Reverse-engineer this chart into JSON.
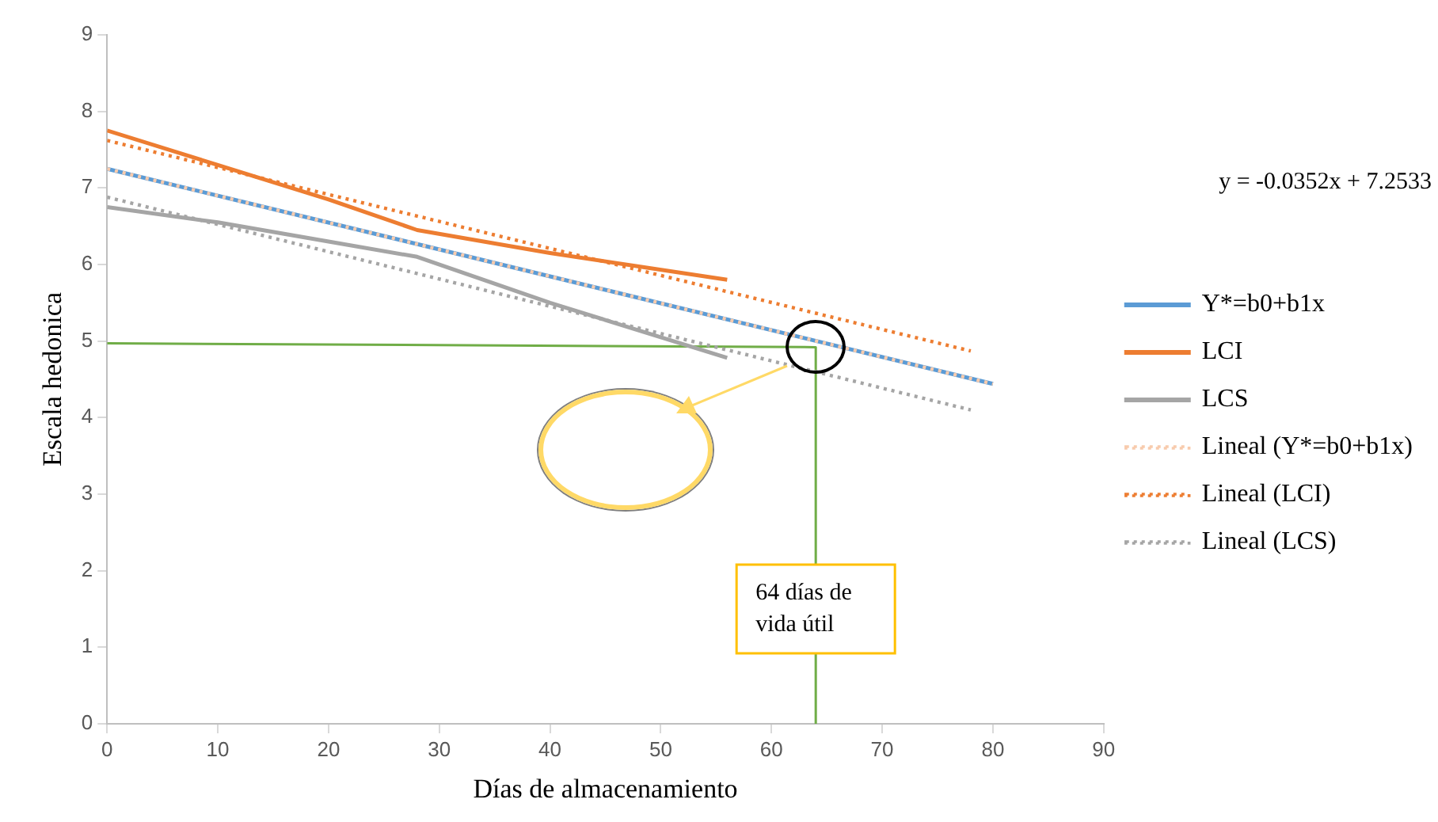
{
  "chart_data": {
    "type": "line",
    "xlabel": "Días de almacenamiento",
    "ylabel": "Escala hedonica",
    "xlim": [
      0,
      90
    ],
    "xticks": [
      0,
      10,
      20,
      30,
      40,
      50,
      60,
      70,
      80,
      90
    ],
    "ylim": [
      0,
      9
    ],
    "yticks": [
      0,
      1,
      2,
      3,
      4,
      5,
      6,
      7,
      8,
      9
    ],
    "grid": false,
    "legend": "right",
    "marker": "none",
    "series": [
      {
        "name": "Y*=b0+b1x",
        "color": "#5b9bd5",
        "line_style": "solid",
        "x": [
          0,
          80
        ],
        "values": [
          7.25,
          4.44
        ]
      },
      {
        "name": "LCI",
        "color": "#ed7d31",
        "line_style": "solid",
        "x": [
          0,
          10,
          20,
          28,
          40,
          56
        ],
        "values": [
          7.75,
          7.3,
          6.85,
          6.45,
          6.15,
          5.8
        ]
      },
      {
        "name": "LCS",
        "color": "#a5a5a5",
        "line_style": "solid",
        "x": [
          0,
          10,
          20,
          28,
          40,
          56
        ],
        "values": [
          6.75,
          6.55,
          6.3,
          6.1,
          5.5,
          4.78
        ]
      },
      {
        "name": "Lineal (Y*=b0+b1x)",
        "color": "#f8cbad",
        "line_style": "dotted",
        "x": [
          0,
          80
        ],
        "values": [
          7.25,
          4.44
        ]
      },
      {
        "name": "Lineal (LCI)",
        "color": "#ed7d31",
        "line_style": "dotted",
        "x": [
          0,
          78
        ],
        "values": [
          7.62,
          4.87
        ]
      },
      {
        "name": "Lineal (LCS)",
        "color": "#a5a5a5",
        "line_style": "dotted",
        "x": [
          0,
          78
        ],
        "values": [
          6.88,
          4.1
        ]
      },
      {
        "color": "#70ad47",
        "line_style": "solid",
        "x": [
          0,
          64,
          64
        ],
        "values": [
          4.97,
          4.92,
          0
        ]
      }
    ],
    "annotations": [
      "y = -0.0352x + 7.2533",
      {
        "text": "64 días de vida útil",
        "x": 64,
        "y": 1.5
      }
    ]
  }
}
